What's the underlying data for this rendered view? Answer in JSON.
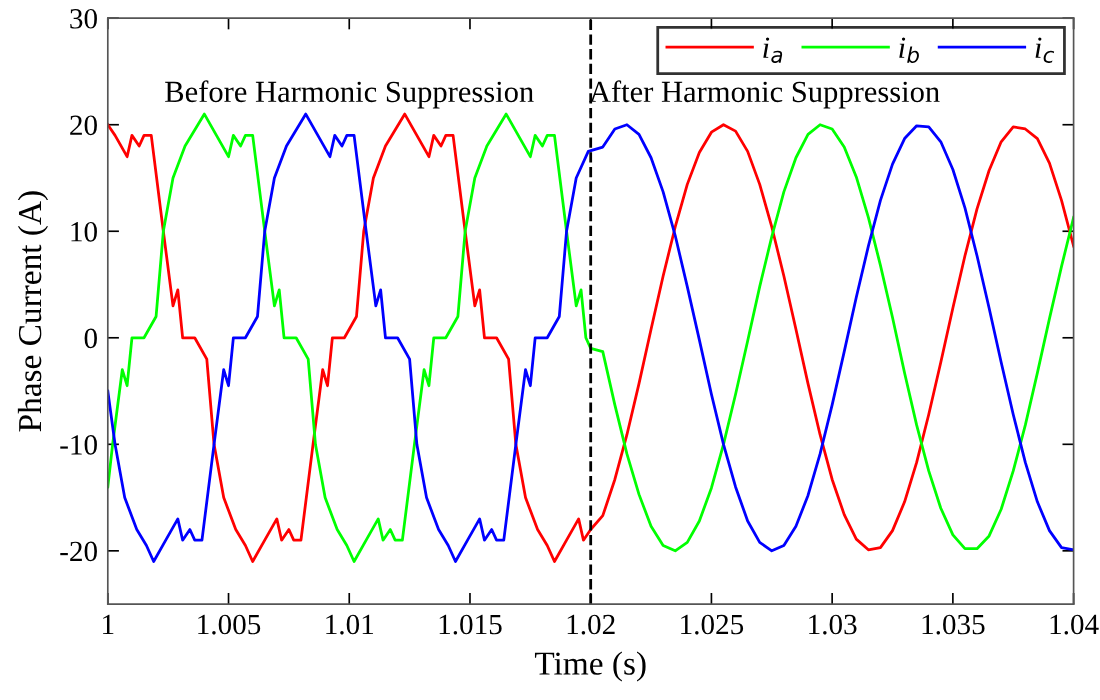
{
  "chart_data": {
    "type": "line",
    "xlabel": "Time (s)",
    "ylabel": "Phase Current (A)",
    "xlim": [
      1,
      1.04
    ],
    "xticks": [
      1,
      1.005,
      1.01,
      1.015,
      1.02,
      1.025,
      1.03,
      1.035,
      1.04
    ],
    "ylim": [
      -25,
      30
    ],
    "yticks": [
      -20,
      -10,
      0,
      10,
      20,
      30
    ],
    "legend": "top right",
    "grid": false,
    "marker": "none",
    "line_style": "solid",
    "ref_lines": [
      {
        "axis": "x",
        "value": 1.02,
        "color": "#000000",
        "line_style": "dashed"
      }
    ],
    "annotations": [
      "Before Harmonic Suppression",
      "After Harmonic Suppression"
    ],
    "series": [
      {
        "name": "i$_{a}$",
        "color": "#ff0000",
        "x": [
          1.0,
          1.0003,
          1.0008,
          1.001,
          1.0013,
          1.0015,
          1.0018,
          1.0023,
          1.0027,
          1.0029,
          1.0031,
          1.0036,
          1.0041,
          1.0044,
          1.0048,
          1.0053,
          1.0057,
          1.006,
          1.0065,
          1.007,
          1.0072,
          1.0075,
          1.0077,
          1.008,
          1.0085,
          1.0089,
          1.0091,
          1.0093,
          1.0098,
          1.0103,
          1.0106,
          1.011,
          1.0115,
          1.0119,
          1.0123,
          1.0128,
          1.0133,
          1.0135,
          1.0138,
          1.014,
          1.0143,
          1.0148,
          1.0152,
          1.0154,
          1.0156,
          1.0161,
          1.0166,
          1.0169,
          1.0173,
          1.0178,
          1.0182,
          1.0185,
          1.019,
          1.0195,
          1.0197,
          1.02,
          1.0205,
          1.021,
          1.0215,
          1.022,
          1.0225,
          1.023,
          1.0235,
          1.024,
          1.0245,
          1.025,
          1.0255,
          1.026,
          1.0265,
          1.027,
          1.0275,
          1.028,
          1.0285,
          1.029,
          1.0295,
          1.03,
          1.0305,
          1.031,
          1.0315,
          1.032,
          1.0325,
          1.033,
          1.0335,
          1.034,
          1.0345,
          1.035,
          1.0355,
          1.036,
          1.0365,
          1.037,
          1.0375,
          1.038,
          1.0385,
          1.039,
          1.0395,
          1.04
        ],
        "values": [
          20,
          19,
          17,
          19,
          18,
          19,
          19,
          10,
          3,
          4.5,
          0,
          0,
          -2,
          -10,
          -15,
          -18,
          -19.5,
          -21,
          -19,
          -17,
          -19,
          -18,
          -19,
          -19,
          -10,
          -3,
          -4.5,
          0,
          0,
          2,
          10,
          15,
          18,
          19.5,
          21,
          19,
          17,
          19,
          18,
          19,
          19,
          10,
          3,
          4.5,
          0,
          0,
          -2,
          -10,
          -15,
          -18,
          -19.5,
          -21,
          -19,
          -17,
          -19,
          -18,
          -16.7,
          -13.3,
          -9.1,
          -4.3,
          0.8,
          5.8,
          10.4,
          14.4,
          17.4,
          19.3,
          20.0,
          19.4,
          17.5,
          14.4,
          10.4,
          5.8,
          0.8,
          -4.3,
          -9.1,
          -13.3,
          -16.6,
          -18.9,
          -19.9,
          -19.7,
          -18.1,
          -15.4,
          -11.7,
          -7.2,
          -2.3,
          2.8,
          7.7,
          12.1,
          15.7,
          18.4,
          19.8,
          19.6,
          18.7,
          16.4,
          12.9,
          8.6
        ]
      },
      {
        "name": "i$_{b}$",
        "color": "#00ff00",
        "x": [
          1.0,
          1.0002,
          1.0006,
          1.0008,
          1.001,
          1.0015,
          1.002,
          1.0023,
          1.0027,
          1.0032,
          1.0036,
          1.004,
          1.0045,
          1.005,
          1.0052,
          1.0055,
          1.0057,
          1.006,
          1.0065,
          1.0069,
          1.0071,
          1.0073,
          1.0078,
          1.0083,
          1.0086,
          1.009,
          1.0095,
          1.0099,
          1.0102,
          1.0107,
          1.0112,
          1.0114,
          1.0117,
          1.0119,
          1.0122,
          1.0127,
          1.0131,
          1.0133,
          1.0135,
          1.014,
          1.0145,
          1.0148,
          1.0152,
          1.0157,
          1.0161,
          1.0165,
          1.017,
          1.0175,
          1.0177,
          1.018,
          1.0182,
          1.0185,
          1.019,
          1.0194,
          1.0196,
          1.0198,
          1.02,
          1.0205,
          1.021,
          1.0215,
          1.022,
          1.0225,
          1.023,
          1.0235,
          1.024,
          1.0245,
          1.025,
          1.0255,
          1.026,
          1.0265,
          1.027,
          1.0275,
          1.028,
          1.0285,
          1.029,
          1.0295,
          1.03,
          1.0305,
          1.031,
          1.0315,
          1.032,
          1.0325,
          1.033,
          1.0335,
          1.034,
          1.0345,
          1.035,
          1.0355,
          1.036,
          1.0365,
          1.037,
          1.0375,
          1.038,
          1.0385,
          1.039,
          1.0395,
          1.04
        ],
        "values": [
          -14,
          -10,
          -3,
          -4.5,
          0,
          0,
          2,
          10,
          15,
          18,
          19.5,
          21,
          19,
          17,
          19,
          18,
          19,
          19,
          10,
          3,
          4.5,
          0,
          0,
          -2,
          -10,
          -15,
          -18,
          -19.5,
          -21,
          -19,
          -17,
          -19,
          -18,
          -19,
          -19,
          -10,
          -3,
          -4.5,
          0,
          0,
          2,
          10,
          15,
          18,
          19.5,
          21,
          19,
          17,
          19,
          18,
          19,
          19,
          10,
          3,
          4.5,
          0,
          -1,
          -1.3,
          -6.3,
          -10.9,
          -14.7,
          -17.7,
          -19.5,
          -20.0,
          -19.2,
          -17.2,
          -14.1,
          -10.0,
          -5.3,
          -0.3,
          4.8,
          9.5,
          13.7,
          16.9,
          19.1,
          20.0,
          19.6,
          17.9,
          15.1,
          11.3,
          6.8,
          1.9,
          -3.3,
          -8.2,
          -12.5,
          -16.0,
          -18.5,
          -19.8,
          -19.8,
          -18.6,
          -16.1,
          -12.5,
          -8.2,
          -3.3,
          1.8,
          6.7,
          11.3
        ]
      },
      {
        "name": "i$_{c}$",
        "color": "#0000ff",
        "x": [
          1.0,
          1.0003,
          1.0007,
          1.0012,
          1.0016,
          1.0019,
          1.0024,
          1.0029,
          1.0031,
          1.0034,
          1.0036,
          1.0039,
          1.0044,
          1.0048,
          1.005,
          1.0052,
          1.0057,
          1.0062,
          1.0065,
          1.0069,
          1.0074,
          1.0078,
          1.0082,
          1.0087,
          1.0092,
          1.0094,
          1.0097,
          1.0099,
          1.0102,
          1.0107,
          1.0111,
          1.0113,
          1.0115,
          1.012,
          1.0125,
          1.0128,
          1.0132,
          1.0137,
          1.0141,
          1.0144,
          1.0149,
          1.0154,
          1.0156,
          1.0159,
          1.0161,
          1.0164,
          1.0169,
          1.0173,
          1.0175,
          1.0177,
          1.0182,
          1.0187,
          1.019,
          1.0194,
          1.0199,
          1.0205,
          1.021,
          1.0215,
          1.022,
          1.0225,
          1.023,
          1.0235,
          1.024,
          1.0245,
          1.025,
          1.0255,
          1.026,
          1.0265,
          1.027,
          1.0275,
          1.028,
          1.0285,
          1.029,
          1.0295,
          1.03,
          1.0305,
          1.031,
          1.0315,
          1.032,
          1.0325,
          1.033,
          1.0335,
          1.034,
          1.0345,
          1.035,
          1.0355,
          1.036,
          1.0365,
          1.037,
          1.0375,
          1.038,
          1.0385,
          1.039,
          1.0395,
          1.04
        ],
        "values": [
          -5,
          -10,
          -15,
          -18,
          -19.5,
          -21,
          -19,
          -17,
          -19,
          -18,
          -19,
          -19,
          -10,
          -3,
          -4.5,
          0,
          0,
          2,
          10,
          15,
          18,
          19.5,
          21,
          19,
          17,
          19,
          18,
          19,
          19,
          10,
          3,
          4.5,
          0,
          0,
          -2,
          -10,
          -15,
          -18,
          -19.5,
          -21,
          -19,
          -17,
          -19,
          -18,
          -19,
          -19,
          -10,
          -3,
          -4.5,
          0,
          0,
          2,
          10,
          15,
          17.5,
          17.9,
          19.6,
          20.0,
          19.1,
          16.9,
          13.7,
          9.6,
          4.8,
          -0.2,
          -5.3,
          -10.0,
          -14.0,
          -17.2,
          -19.2,
          -20.0,
          -19.5,
          -17.7,
          -14.8,
          -10.9,
          -6.3,
          -1.3,
          3.8,
          8.6,
          12.9,
          16.3,
          18.7,
          19.9,
          19.8,
          18.4,
          15.8,
          12.2,
          7.7,
          2.8,
          -2.3,
          -7.2,
          -11.7,
          -15.4,
          -18.1,
          -19.7,
          -19.9
        ]
      }
    ]
  }
}
